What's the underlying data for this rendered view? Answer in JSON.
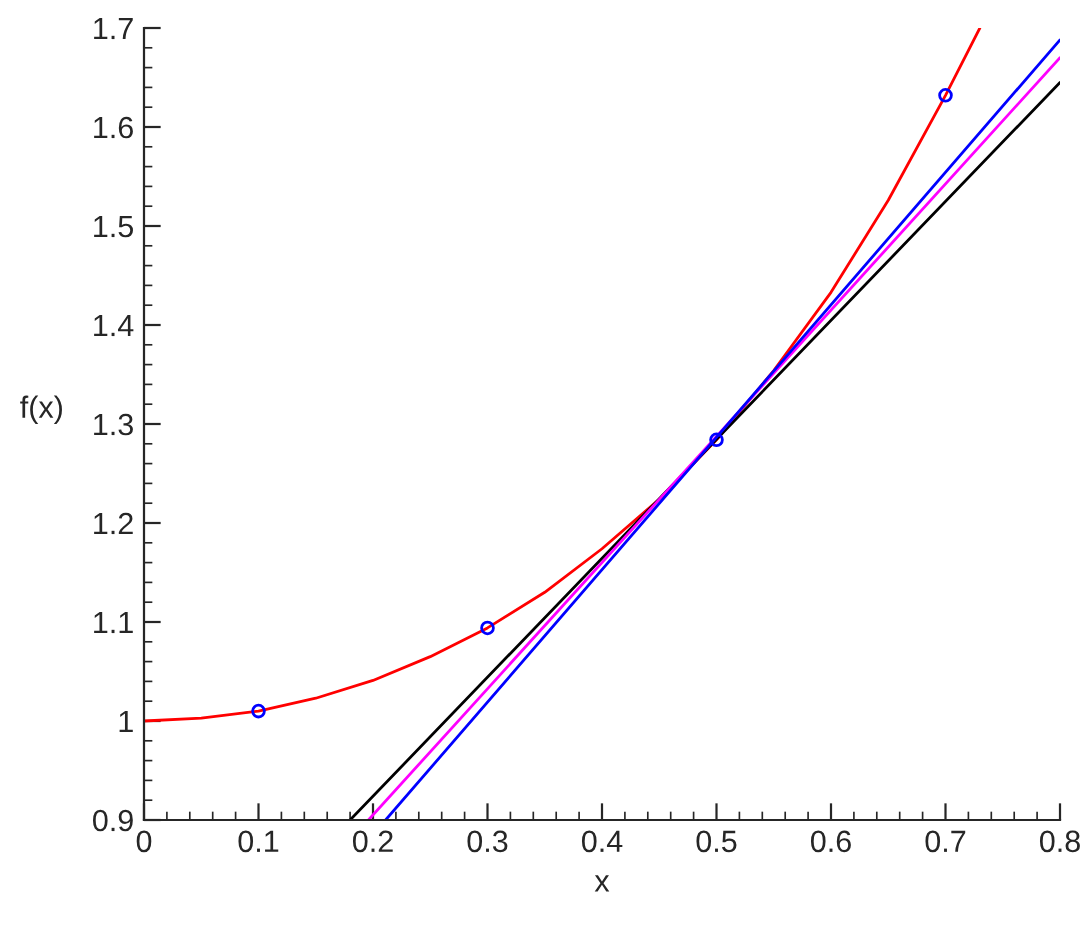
{
  "chart_data": {
    "type": "line",
    "xlabel": "x",
    "ylabel": "f(x)",
    "xlim": [
      0,
      0.8
    ],
    "ylim": [
      0.9,
      1.7
    ],
    "xticks": [
      0,
      0.1,
      0.2,
      0.3,
      0.4,
      0.5,
      0.6,
      0.7,
      0.8
    ],
    "yticks": [
      0.9,
      1,
      1.1,
      1.2,
      1.3,
      1.4,
      1.5,
      1.6,
      1.7
    ],
    "grid": false,
    "legend": false,
    "series": [
      {
        "color": "#ff0000",
        "x": [
          0,
          0.05,
          0.1,
          0.15,
          0.2,
          0.25,
          0.3,
          0.35,
          0.4,
          0.45,
          0.5,
          0.55,
          0.6,
          0.65,
          0.7,
          0.73
        ],
        "values": [
          1,
          1.003,
          1.01,
          1.023,
          1.041,
          1.065,
          1.094,
          1.13,
          1.174,
          1.224,
          1.284,
          1.354,
          1.433,
          1.526,
          1.632,
          1.7
        ]
      },
      {
        "color": "#000000",
        "x": [
          0.18,
          0.8
        ],
        "values": [
          0.9,
          1.645
        ]
      },
      {
        "color": "#ff00ff",
        "x": [
          0.196,
          0.8
        ],
        "values": [
          0.9,
          1.67
        ]
      },
      {
        "color": "#0000ff",
        "x": [
          0.211,
          0.8
        ],
        "values": [
          0.9,
          1.688
        ]
      },
      {
        "type": "scatter",
        "color": "#0000ff",
        "marker": "circle",
        "x": [
          0.1,
          0.3,
          0.5,
          0.7
        ],
        "values": [
          1.01,
          1.094,
          1.284,
          1.632
        ]
      }
    ]
  }
}
